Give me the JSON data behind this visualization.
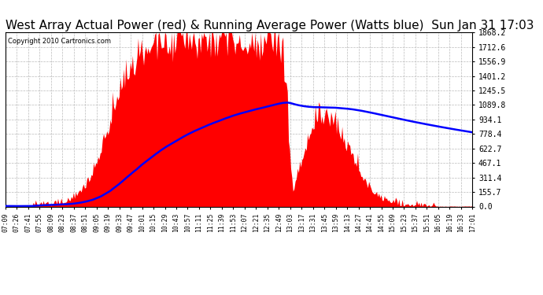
{
  "title": "West Array Actual Power (red) & Running Average Power (Watts blue)  Sun Jan 31 17:03",
  "copyright": "Copyright 2010 Cartronics.com",
  "ymax": 1868.2,
  "yticks": [
    0.0,
    155.7,
    311.4,
    467.1,
    622.7,
    778.4,
    934.1,
    1089.8,
    1245.5,
    1401.2,
    1556.9,
    1712.6,
    1868.2
  ],
  "xtick_labels": [
    "07:09",
    "07:26",
    "07:41",
    "07:55",
    "08:09",
    "08:23",
    "08:37",
    "08:51",
    "09:05",
    "09:19",
    "09:33",
    "09:47",
    "10:01",
    "10:15",
    "10:29",
    "10:43",
    "10:57",
    "11:11",
    "11:25",
    "11:39",
    "11:53",
    "12:07",
    "12:21",
    "12:35",
    "12:49",
    "13:03",
    "13:17",
    "13:31",
    "13:45",
    "13:59",
    "14:13",
    "14:27",
    "14:41",
    "14:55",
    "15:09",
    "15:23",
    "15:37",
    "15:51",
    "16:05",
    "16:19",
    "16:33",
    "17:01"
  ],
  "background_color": "#ffffff",
  "actual_color": "#ff0000",
  "avg_color": "#0000ff",
  "grid_color": "#bbbbbb",
  "title_fontsize": 11,
  "axis_fontsize": 7,
  "n_labels": 42
}
